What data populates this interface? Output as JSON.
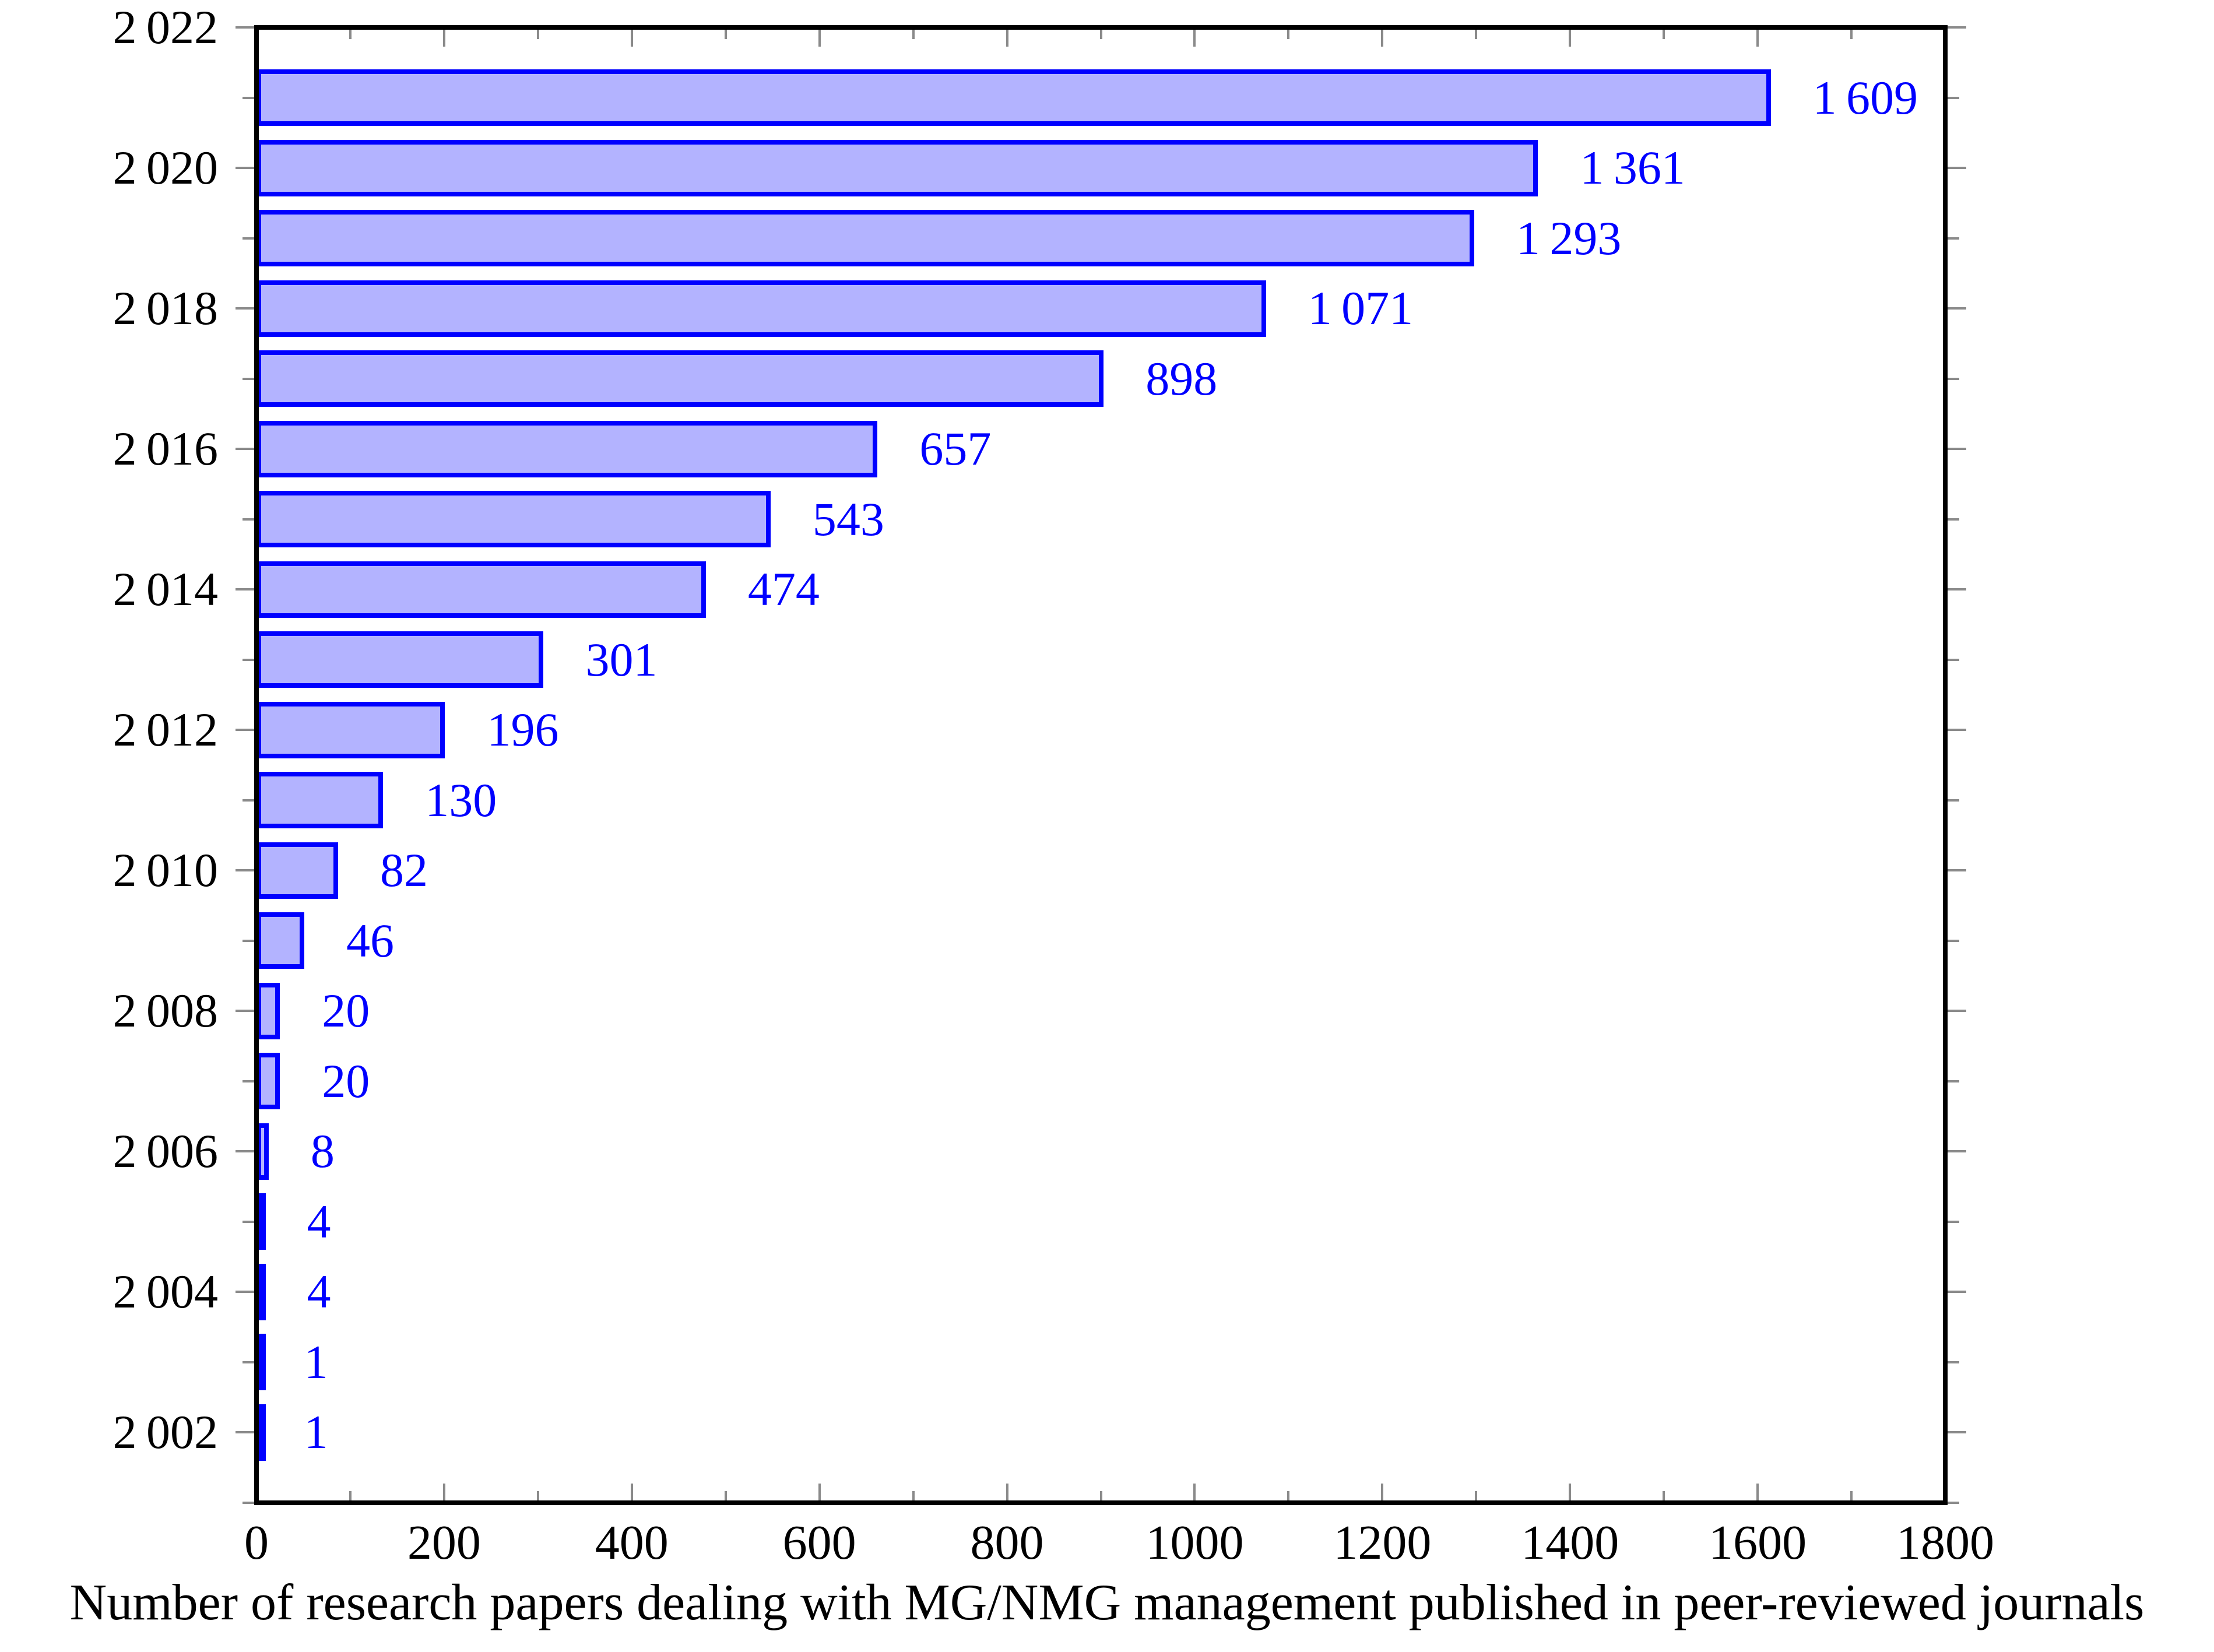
{
  "chart_data": {
    "type": "bar",
    "orientation": "horizontal",
    "title": "",
    "caption": "Number of research papers dealing with MG/NMG management published in peer-reviewed journals",
    "categories": [
      2002,
      2003,
      2004,
      2005,
      2006,
      2007,
      2008,
      2009,
      2010,
      2011,
      2012,
      2013,
      2014,
      2015,
      2016,
      2017,
      2018,
      2019,
      2020,
      2021
    ],
    "values": [
      1,
      1,
      4,
      4,
      8,
      20,
      20,
      46,
      82,
      130,
      196,
      301,
      474,
      543,
      657,
      898,
      1071,
      1293,
      1361,
      1609
    ],
    "value_labels": [
      "1",
      "1",
      "4",
      "4",
      "8",
      "20",
      "20",
      "46",
      "82",
      "130",
      "196",
      "301",
      "474",
      "543",
      "657",
      "898",
      "1 071",
      "1 293",
      "1 361",
      "1 609"
    ],
    "xlabel": "",
    "ylabel": "",
    "x_axis": {
      "range": [
        0,
        1800
      ],
      "major_ticks": [
        200,
        400,
        600,
        800,
        1000,
        1200,
        1400,
        1600,
        1800
      ],
      "major_tick_labels_values": [
        0,
        200,
        400,
        600,
        800,
        1000,
        1200,
        1400,
        1600,
        1800
      ],
      "major_tick_labels": [
        "0",
        "200",
        "400",
        "600",
        "800",
        "1000",
        "1200",
        "1400",
        "1600",
        "1800"
      ],
      "minor_ticks": [
        100,
        300,
        500,
        700,
        900,
        1100,
        1300,
        1500,
        1700
      ]
    },
    "y_axis": {
      "range": [
        2001,
        2022
      ],
      "major_ticks": [
        2002,
        2004,
        2006,
        2008,
        2010,
        2012,
        2014,
        2016,
        2018,
        2020,
        2022
      ],
      "major_tick_labels": [
        "2 002",
        "2 004",
        "2 006",
        "2 008",
        "2 010",
        "2 012",
        "2 014",
        "2 016",
        "2 018",
        "2 020",
        "2 022"
      ],
      "minor_ticks": [
        2001,
        2003,
        2005,
        2007,
        2009,
        2011,
        2013,
        2015,
        2017,
        2019,
        2021
      ]
    },
    "grid": false,
    "legend": null,
    "colors": {
      "bar_fill": "#b3b3ff",
      "bar_border": "#0000ff",
      "value_label": "#0000ff",
      "axis_frame": "#000000",
      "tick": "#8a8a8a",
      "tick_label": "#000000"
    }
  }
}
